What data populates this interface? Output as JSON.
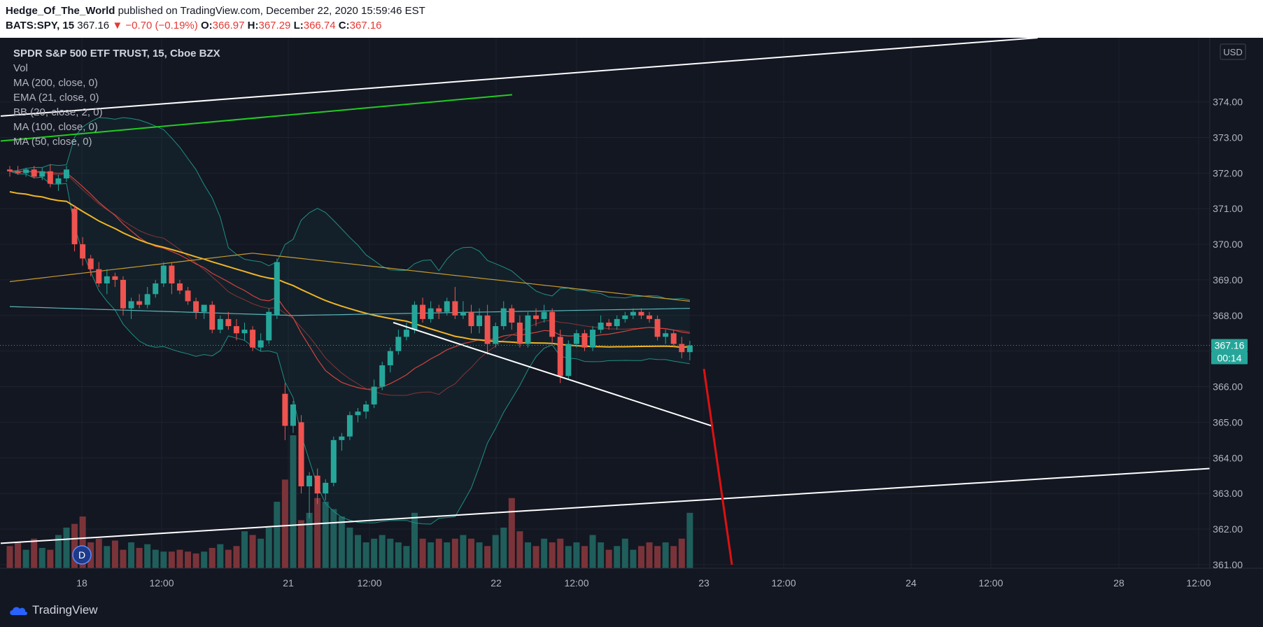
{
  "header": {
    "author": "Hedge_Of_The_World",
    "published_text": "published on TradingView.com, December 22, 2020 15:59:46 EST",
    "symbol": "BATS:SPY, 15",
    "last": "367.16",
    "arrow": "▼",
    "change": "−0.70 (−0.19%)",
    "o_label": "O:",
    "o_value": "366.97",
    "h_label": "H:",
    "h_value": "367.29",
    "l_label": "L:",
    "l_value": "366.74",
    "c_label": "C:",
    "c_value": "367.16"
  },
  "legend": {
    "title": "SPDR S&P 500 ETF TRUST, 15, Cboe BZX",
    "items": [
      "Vol",
      "MA (200, close, 0)",
      "EMA (21, close, 0)",
      "BB (20, close, 2, 0)",
      "MA (100, close, 0)",
      "MA (50, close, 0)"
    ]
  },
  "price_axis": {
    "currency": "USD",
    "last_price_tag": "367.16",
    "countdown_tag": "00:14"
  },
  "footer": {
    "brand": "TradingView"
  },
  "marker": {
    "label": "D"
  },
  "colors": {
    "up": "#26a69a",
    "down": "#ef5350",
    "vol_up": "#1f5e5b",
    "vol_down": "#7a3439",
    "ma50": "#f0b429",
    "ma100": "#c99a2e",
    "ma200": "#5ab3b8",
    "ema21": "#d4433f",
    "bb": "#1f8f84",
    "trend_white": "#ffffff",
    "trend_green": "#22cc22",
    "trend_red": "#e01010"
  },
  "chart_data": {
    "type": "candlestick",
    "interval": "15",
    "ylim": [
      360.9,
      375.8
    ],
    "y_ticks": [
      "361.00",
      "362.00",
      "363.00",
      "364.00",
      "365.00",
      "366.00",
      "367.00",
      "368.00",
      "369.00",
      "370.00",
      "371.00",
      "372.00",
      "373.00",
      "374.00"
    ],
    "x_ticks": [
      "18",
      "12:00",
      "21",
      "12:00",
      "22",
      "12:00",
      "23",
      "12:00",
      "24",
      "12:00",
      "28",
      "12:00"
    ],
    "candles": [
      [
        372.1,
        372.2,
        371.9,
        372.05
      ],
      [
        372.05,
        372.2,
        371.95,
        372.0
      ],
      [
        372.0,
        372.15,
        371.9,
        372.1
      ],
      [
        372.1,
        372.2,
        371.85,
        371.9
      ],
      [
        371.9,
        372.15,
        371.8,
        372.05
      ],
      [
        372.05,
        372.25,
        371.6,
        371.7
      ],
      [
        371.7,
        371.95,
        371.5,
        371.85
      ],
      [
        371.85,
        372.2,
        371.75,
        372.1
      ],
      [
        371.0,
        371.1,
        369.8,
        370.0
      ],
      [
        370.0,
        370.2,
        369.4,
        369.6
      ],
      [
        369.6,
        369.7,
        369.1,
        369.3
      ],
      [
        369.3,
        369.5,
        368.8,
        368.9
      ],
      [
        368.9,
        369.3,
        368.6,
        369.1
      ],
      [
        369.1,
        369.2,
        368.8,
        369.0
      ],
      [
        369.0,
        369.1,
        368.0,
        368.2
      ],
      [
        368.2,
        368.5,
        367.9,
        368.4
      ],
      [
        368.4,
        368.6,
        368.2,
        368.3
      ],
      [
        368.3,
        368.8,
        368.2,
        368.6
      ],
      [
        368.6,
        369.0,
        368.5,
        368.9
      ],
      [
        368.9,
        369.5,
        368.8,
        369.4
      ],
      [
        369.4,
        369.5,
        368.6,
        368.9
      ],
      [
        368.9,
        369.0,
        368.6,
        368.7
      ],
      [
        368.7,
        368.8,
        368.3,
        368.4
      ],
      [
        368.4,
        368.5,
        367.9,
        368.1
      ],
      [
        368.1,
        368.3,
        367.9,
        368.3
      ],
      [
        368.3,
        368.4,
        367.5,
        367.6
      ],
      [
        367.6,
        368.0,
        367.5,
        367.9
      ],
      [
        367.9,
        368.1,
        367.6,
        367.7
      ],
      [
        367.7,
        367.9,
        367.3,
        367.5
      ],
      [
        367.5,
        367.8,
        367.3,
        367.6
      ],
      [
        367.6,
        367.7,
        367.0,
        367.1
      ],
      [
        367.1,
        367.5,
        367.0,
        367.3
      ],
      [
        367.3,
        368.2,
        367.2,
        368.1
      ],
      [
        368.0,
        369.6,
        367.9,
        369.5
      ],
      [
        365.8,
        366.1,
        364.5,
        364.9
      ],
      [
        364.9,
        365.6,
        364.7,
        365.5
      ],
      [
        365.0,
        365.2,
        363.0,
        363.2
      ],
      [
        363.2,
        363.6,
        362.3,
        363.5
      ],
      [
        363.5,
        363.7,
        362.7,
        363.0
      ],
      [
        363.0,
        363.4,
        362.8,
        363.3
      ],
      [
        363.3,
        364.6,
        363.2,
        364.5
      ],
      [
        364.5,
        364.7,
        364.2,
        364.6
      ],
      [
        364.6,
        365.3,
        364.5,
        365.2
      ],
      [
        365.2,
        365.4,
        365.0,
        365.3
      ],
      [
        365.3,
        365.6,
        365.1,
        365.5
      ],
      [
        365.5,
        366.2,
        365.4,
        366.0
      ],
      [
        366.0,
        366.7,
        365.9,
        366.6
      ],
      [
        366.6,
        367.1,
        366.4,
        367.0
      ],
      [
        367.0,
        367.6,
        366.9,
        367.4
      ],
      [
        367.4,
        367.8,
        367.3,
        367.6
      ],
      [
        367.6,
        368.4,
        367.5,
        368.3
      ],
      [
        368.3,
        368.5,
        367.8,
        367.9
      ],
      [
        367.9,
        368.4,
        367.8,
        368.2
      ],
      [
        368.2,
        368.3,
        367.9,
        368.1
      ],
      [
        368.1,
        368.5,
        368.0,
        368.4
      ],
      [
        368.4,
        368.8,
        367.9,
        368.0
      ],
      [
        368.0,
        368.4,
        367.9,
        368.1
      ],
      [
        368.1,
        368.3,
        367.5,
        367.7
      ],
      [
        367.7,
        368.2,
        367.5,
        368.0
      ],
      [
        368.0,
        368.3,
        366.9,
        367.2
      ],
      [
        367.2,
        367.8,
        367.1,
        367.7
      ],
      [
        367.7,
        368.4,
        367.6,
        368.2
      ],
      [
        368.2,
        368.3,
        367.6,
        367.8
      ],
      [
        367.8,
        368.0,
        367.1,
        367.2
      ],
      [
        367.2,
        368.1,
        367.1,
        368.0
      ],
      [
        368.0,
        368.2,
        367.7,
        367.9
      ],
      [
        367.9,
        368.3,
        367.8,
        368.1
      ],
      [
        368.1,
        368.2,
        367.2,
        367.4
      ],
      [
        367.4,
        367.6,
        366.1,
        366.3
      ],
      [
        366.3,
        367.3,
        366.2,
        367.2
      ],
      [
        367.2,
        367.6,
        367.1,
        367.5
      ],
      [
        367.5,
        367.6,
        367.0,
        367.1
      ],
      [
        367.1,
        367.7,
        367.0,
        367.6
      ],
      [
        367.6,
        368.0,
        367.5,
        367.8
      ],
      [
        367.8,
        367.9,
        367.6,
        367.7
      ],
      [
        367.7,
        368.0,
        367.6,
        367.9
      ],
      [
        367.9,
        368.1,
        367.8,
        368.0
      ],
      [
        368.0,
        368.2,
        367.9,
        368.1
      ],
      [
        368.1,
        368.2,
        367.9,
        368.0
      ],
      [
        368.0,
        368.1,
        367.8,
        367.9
      ],
      [
        367.9,
        368.0,
        367.3,
        367.4
      ],
      [
        367.4,
        367.6,
        367.2,
        367.5
      ],
      [
        367.5,
        367.6,
        367.1,
        367.2
      ],
      [
        367.2,
        367.4,
        366.8,
        366.97
      ],
      [
        366.97,
        367.29,
        366.74,
        367.16
      ]
    ],
    "volume": [
      12,
      14,
      10,
      16,
      11,
      10,
      18,
      22,
      24,
      28,
      14,
      16,
      12,
      15,
      10,
      14,
      11,
      13,
      10,
      9,
      9,
      10,
      9,
      8,
      9,
      11,
      13,
      10,
      12,
      20,
      18,
      16,
      22,
      36,
      48,
      72,
      26,
      30,
      38,
      36,
      32,
      28,
      22,
      18,
      14,
      16,
      18,
      16,
      14,
      12,
      30,
      16,
      14,
      16,
      14,
      16,
      18,
      16,
      14,
      12,
      18,
      22,
      38,
      20,
      14,
      12,
      16,
      14,
      16,
      12,
      14,
      12,
      18,
      14,
      10,
      12,
      16,
      10,
      12,
      14,
      12,
      14,
      12,
      16,
      30
    ],
    "trendlines": [
      {
        "color": "white",
        "from": [
          1,
          373.6
        ],
        "to": [
          1483,
          375.8
        ]
      },
      {
        "color": "green",
        "from": [
          1,
          372.9
        ],
        "to": [
          732,
          374.2
        ]
      },
      {
        "color": "white",
        "from": [
          1,
          361.6
        ],
        "to": [
          1729,
          363.7
        ]
      },
      {
        "color": "white",
        "from": [
          562,
          367.8
        ],
        "to": [
          1017,
          364.9
        ]
      },
      {
        "color": "red",
        "from": [
          1006,
          366.5
        ],
        "to": [
          1046,
          361.0
        ]
      }
    ]
  }
}
